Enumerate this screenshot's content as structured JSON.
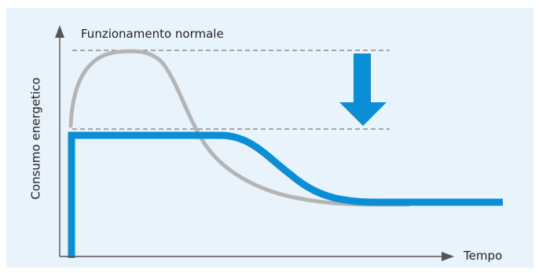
{
  "diagram": {
    "top_label": "Funzionamento normale",
    "x_label": "Tempo",
    "y_label": "Consumo energetico"
  },
  "colors": {
    "background": "#e9f3fb",
    "normal_curve": "#b5b5b5",
    "reduced_curve": "#0a8fd6",
    "arrow": "#0a8fd6",
    "axis": "#555555",
    "guide_lines": "#777777"
  }
}
